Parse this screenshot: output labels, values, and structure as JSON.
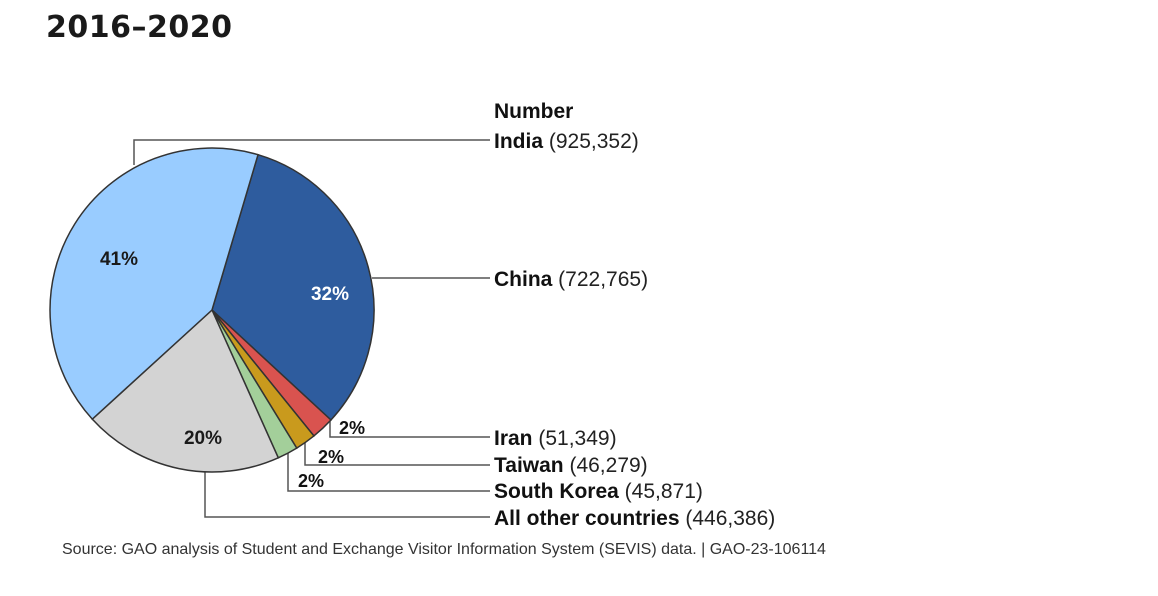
{
  "page": {
    "title": "2016–2020"
  },
  "chart_data": {
    "type": "pie",
    "legend_header": "Number",
    "slices": [
      {
        "name": "India",
        "value": 925352,
        "value_label": "(925,352)",
        "percent_label": "41%",
        "color": "#99ccff",
        "label_color": "#1a1a1a"
      },
      {
        "name": "China",
        "value": 722765,
        "value_label": "(722,765)",
        "percent_label": "32%",
        "color": "#2e5c9e",
        "label_color": "#ffffff"
      },
      {
        "name": "Iran",
        "value": 51349,
        "value_label": "(51,349)",
        "percent_label": "2%",
        "color": "#d9534f",
        "label_color": "#111111"
      },
      {
        "name": "Taiwan",
        "value": 46279,
        "value_label": "(46,279)",
        "percent_label": "2%",
        "color": "#c99a1d",
        "label_color": "#111111"
      },
      {
        "name": "South Korea",
        "value": 45871,
        "value_label": "(45,871)",
        "percent_label": "2%",
        "color": "#a3cf9a",
        "label_color": "#111111"
      },
      {
        "name": "All other countries",
        "value": 446386,
        "value_label": "(446,386)",
        "percent_label": "20%",
        "color": "#d3d3d3",
        "label_color": "#1a1a1a"
      }
    ]
  },
  "source": {
    "text": "Source: GAO analysis of Student and Exchange Visitor Information System (SEVIS) data.  |  GAO-23-106114"
  }
}
